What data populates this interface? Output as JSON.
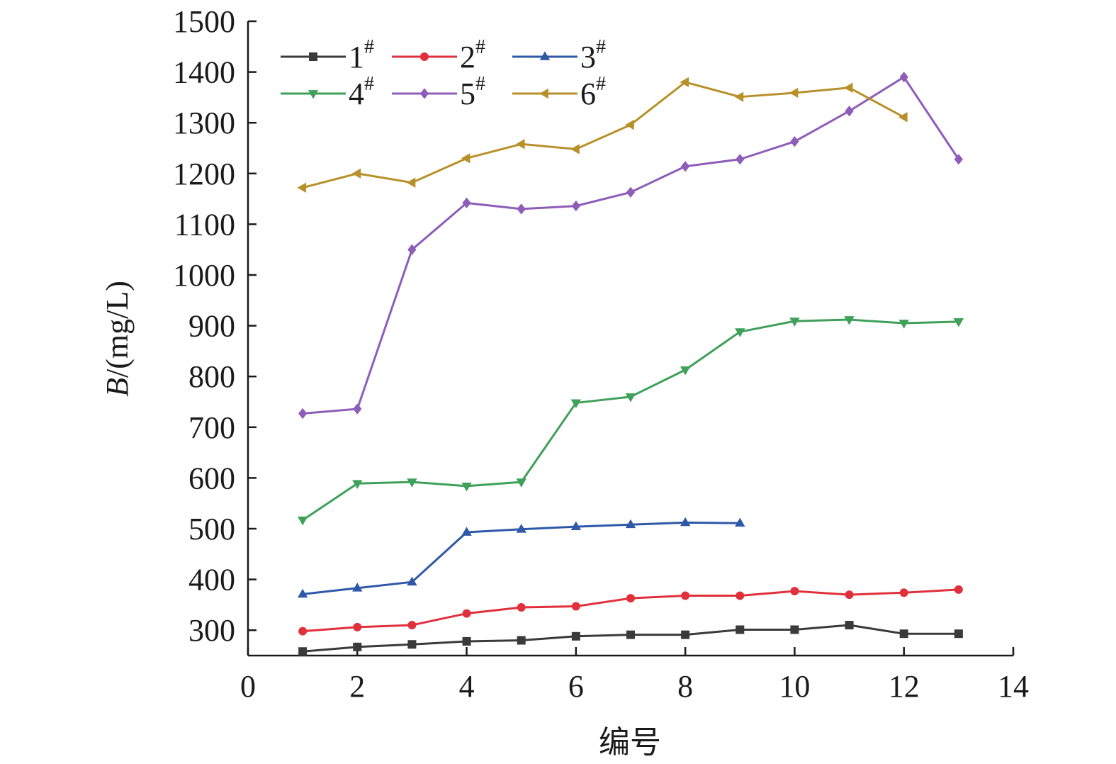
{
  "chart_data": {
    "type": "line",
    "title": "",
    "xlabel": "编号",
    "ylabel": "(mg/L)",
    "ylabel_prefix": "B",
    "ylabel_sep": "/",
    "xlim": [
      0,
      14
    ],
    "ylim": [
      250,
      1500
    ],
    "xticks": [
      0,
      2,
      4,
      6,
      8,
      10,
      12,
      14
    ],
    "yticks": [
      300,
      400,
      500,
      600,
      700,
      800,
      900,
      1000,
      1100,
      1200,
      1300,
      1400,
      1500
    ],
    "grid": false,
    "legend": {
      "placement": "top-left",
      "columns": 3,
      "symbol": "#"
    },
    "series": [
      {
        "name": "1",
        "color": "#3a3a3a",
        "marker": "square",
        "x": [
          1,
          2,
          3,
          4,
          5,
          6,
          7,
          8,
          9,
          10,
          11,
          12,
          13
        ],
        "y": [
          258,
          267,
          272,
          278,
          280,
          288,
          291,
          291,
          301,
          301,
          310,
          293,
          293
        ]
      },
      {
        "name": "2",
        "color": "#e0303c",
        "marker": "circle",
        "x": [
          1,
          2,
          3,
          4,
          5,
          6,
          7,
          8,
          9,
          10,
          11,
          12,
          13
        ],
        "y": [
          298,
          306,
          310,
          333,
          345,
          347,
          363,
          368,
          368,
          377,
          370,
          374,
          380
        ]
      },
      {
        "name": "3",
        "color": "#2e58a8",
        "marker": "triangle-up",
        "x": [
          1,
          2,
          3,
          4,
          5,
          6,
          7,
          8,
          9
        ],
        "y": [
          371,
          383,
          395,
          493,
          499,
          504,
          508,
          512,
          511
        ]
      },
      {
        "name": "4",
        "color": "#3fa05a",
        "marker": "triangle-down",
        "x": [
          1,
          2,
          3,
          4,
          5,
          6,
          7,
          8,
          9,
          10,
          11,
          12,
          13
        ],
        "y": [
          517,
          589,
          592,
          584,
          592,
          748,
          760,
          813,
          888,
          909,
          912,
          905,
          908
        ]
      },
      {
        "name": "5",
        "color": "#8e5db8",
        "marker": "diamond",
        "x": [
          1,
          2,
          3,
          4,
          5,
          6,
          7,
          8,
          9,
          10,
          11,
          12,
          13
        ],
        "y": [
          727,
          736,
          1050,
          1142,
          1130,
          1136,
          1163,
          1214,
          1228,
          1263,
          1323,
          1390,
          1228
        ]
      },
      {
        "name": "6",
        "color": "#b8902a",
        "marker": "triangle-left",
        "x": [
          1,
          2,
          3,
          4,
          5,
          6,
          7,
          8,
          9,
          10,
          11,
          12
        ],
        "y": [
          1172,
          1200,
          1182,
          1230,
          1258,
          1248,
          1296,
          1380,
          1351,
          1359,
          1369,
          1311
        ]
      }
    ]
  }
}
